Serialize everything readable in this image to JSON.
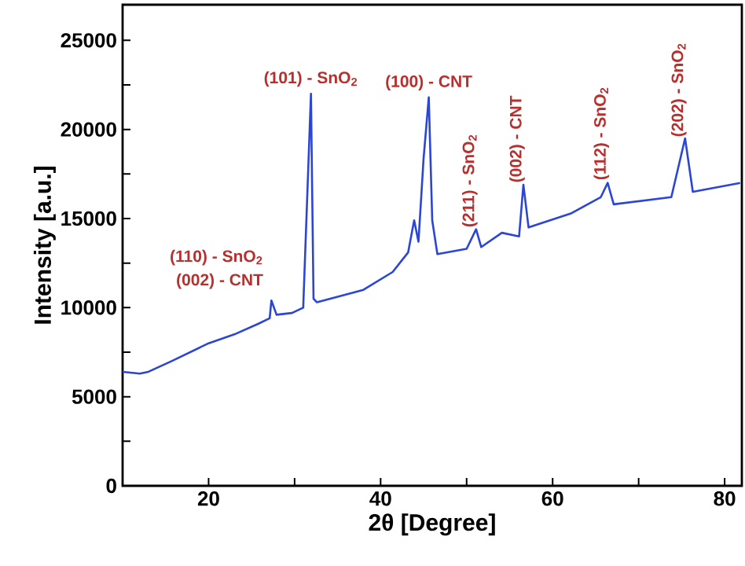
{
  "chart_data": {
    "type": "line",
    "xlabel": "2θ [Degree]",
    "ylabel": "Intensity [a.u.]",
    "xlim": [
      10,
      82
    ],
    "ylim": [
      0,
      27000
    ],
    "xticks": [
      20,
      {
        "value": 30,
        "label": null
      },
      40,
      {
        "value": 50,
        "label": null
      },
      60,
      {
        "value": 70,
        "label": null
      },
      80
    ],
    "yticks": [
      0,
      {
        "value": 2500,
        "label": null
      },
      5000,
      {
        "value": 7500,
        "label": null
      },
      10000,
      {
        "value": 12500,
        "label": null
      },
      15000,
      {
        "value": 17500,
        "label": null
      },
      20000,
      {
        "value": 22500,
        "label": null
      },
      25000
    ],
    "grid": false,
    "marker": "none",
    "line_style": "solid",
    "x": [
      10,
      12,
      13,
      15.7,
      20,
      23,
      25.8,
      27.1,
      27.3,
      27.9,
      29.7,
      31,
      31.9,
      32.2,
      32.6,
      38,
      41.4,
      43.2,
      43.9,
      44.4,
      45,
      45.6,
      46,
      46.6,
      50,
      51.1,
      51.7,
      54.1,
      56.1,
      56.6,
      57.2,
      62.2,
      65.6,
      66.4,
      67.1,
      73.8,
      75.4,
      76.3,
      81.8
    ],
    "series": [
      {
        "color": "#2b45d8",
        "values": [
          6400,
          6300,
          6400,
          7000,
          8000,
          8500,
          9100,
          9400,
          10400,
          9600,
          9700,
          10000,
          22000,
          10500,
          10300,
          11000,
          12000,
          13100,
          14900,
          13700,
          18400,
          21800,
          14900,
          13000,
          13300,
          14400,
          13400,
          14200,
          14000,
          16900,
          14500,
          15300,
          16200,
          17000,
          15800,
          16200,
          19500,
          16500,
          17000
        ]
      }
    ],
    "annotations": [
      {
        "text": "(002) - CNT",
        "x": 27.3,
        "y": 10420
      },
      {
        "text": "(110) - SnO$_{2}$",
        "x": 27.3,
        "y": 10420
      },
      {
        "text": "(101) - SnO$_{2}$",
        "x": 31.9,
        "y": 22030
      },
      {
        "text": "(100) - CNT",
        "x": 45.6,
        "y": 21820
      },
      {
        "text": "(211) - SnO$_{2}$",
        "x": 51.1,
        "y": 14400
      },
      {
        "text": "(002) - CNT",
        "x": 56.6,
        "y": 16910
      },
      {
        "text": "(112) - SnO$_{2}$",
        "x": 66.4,
        "y": 17050
      },
      {
        "text": "(202) - SnO$_{2}$",
        "x": 75.4,
        "y": 19470
      }
    ]
  }
}
